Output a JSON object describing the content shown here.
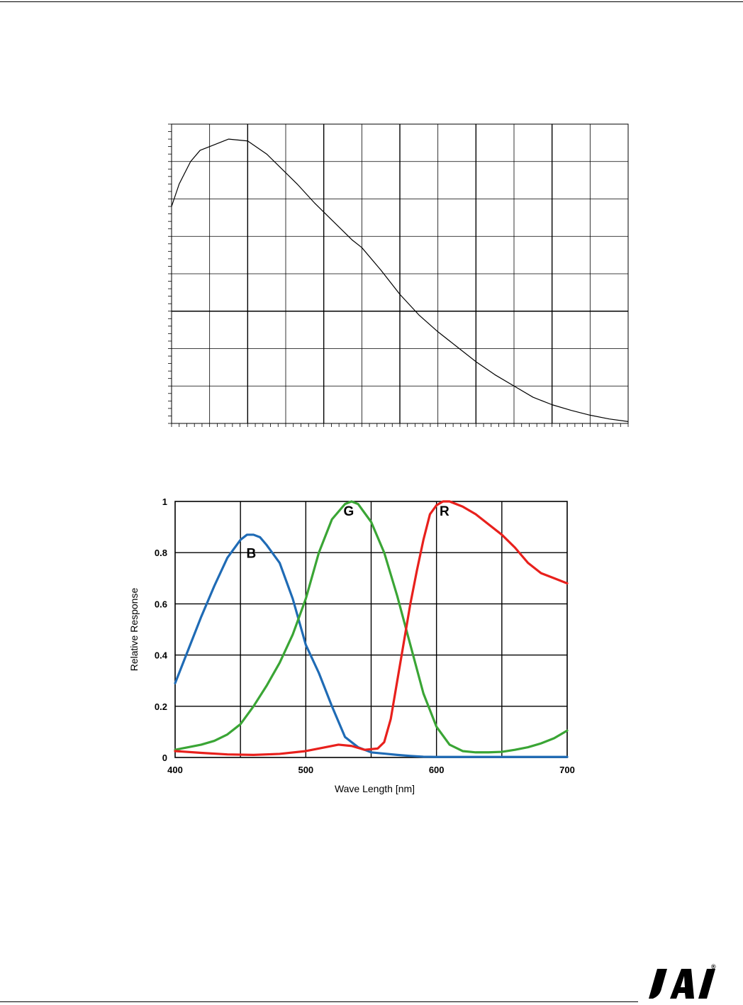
{
  "chart_data": [
    {
      "type": "line",
      "title": "",
      "xlabel": "",
      "ylabel": "",
      "grid": true,
      "x_divisions": 12,
      "y_divisions": 8,
      "series": [
        {
          "color": "#000000",
          "x": [
            0,
            0.2,
            0.5,
            0.75,
            1.0,
            1.5,
            2.0,
            2.5,
            2.9,
            3.3,
            3.75,
            4.25,
            4.75,
            5.0,
            5.5,
            6.0,
            6.5,
            7.0,
            7.5,
            8.0,
            8.5,
            9.0,
            9.5,
            10.0,
            10.5,
            11.0,
            11.5,
            12.0
          ],
          "y": [
            5.8,
            6.4,
            7.0,
            7.3,
            7.4,
            7.6,
            7.55,
            7.2,
            6.8,
            6.4,
            5.9,
            5.4,
            4.9,
            4.7,
            4.1,
            3.45,
            2.9,
            2.45,
            2.05,
            1.65,
            1.3,
            1.0,
            0.7,
            0.5,
            0.35,
            0.22,
            0.12,
            0.05
          ]
        }
      ]
    },
    {
      "type": "line",
      "title": "",
      "xlabel": "Wave Length [nm]",
      "ylabel": "Relative Response",
      "xlim": [
        400,
        700
      ],
      "ylim": [
        0,
        1
      ],
      "x_ticks": [
        "400",
        "500",
        "600",
        "700"
      ],
      "y_ticks": [
        "0",
        "0.2",
        "0.4",
        "0.6",
        "0.8",
        "1"
      ],
      "grid": true,
      "series": [
        {
          "name": "B",
          "color": "#1f6bb5",
          "x": [
            400,
            410,
            420,
            430,
            440,
            450,
            455,
            460,
            465,
            470,
            480,
            490,
            500,
            510,
            520,
            530,
            540,
            550,
            560,
            570,
            580,
            590,
            600,
            620,
            640,
            660,
            680,
            700
          ],
          "y": [
            0.29,
            0.42,
            0.55,
            0.67,
            0.78,
            0.85,
            0.87,
            0.87,
            0.86,
            0.83,
            0.76,
            0.62,
            0.44,
            0.33,
            0.2,
            0.08,
            0.04,
            0.02,
            0.015,
            0.01,
            0.006,
            0.003,
            0.002,
            0.002,
            0.002,
            0.002,
            0.002,
            0.002
          ]
        },
        {
          "name": "G",
          "color": "#3aa535",
          "x": [
            400,
            410,
            420,
            430,
            440,
            450,
            460,
            470,
            480,
            490,
            500,
            510,
            520,
            530,
            535,
            540,
            550,
            560,
            570,
            580,
            590,
            600,
            610,
            620,
            630,
            640,
            650,
            660,
            670,
            680,
            690,
            700
          ],
          "y": [
            0.03,
            0.04,
            0.05,
            0.065,
            0.09,
            0.13,
            0.2,
            0.28,
            0.37,
            0.48,
            0.62,
            0.8,
            0.93,
            0.99,
            1.0,
            0.99,
            0.92,
            0.8,
            0.63,
            0.44,
            0.25,
            0.12,
            0.05,
            0.025,
            0.02,
            0.02,
            0.022,
            0.03,
            0.04,
            0.055,
            0.075,
            0.105
          ]
        },
        {
          "name": "R",
          "color": "#e8201c",
          "x": [
            400,
            420,
            440,
            460,
            480,
            500,
            515,
            525,
            535,
            545,
            555,
            560,
            565,
            570,
            575,
            580,
            585,
            590,
            595,
            600,
            605,
            610,
            620,
            630,
            640,
            650,
            660,
            670,
            680,
            690,
            700
          ],
          "y": [
            0.025,
            0.018,
            0.012,
            0.01,
            0.014,
            0.025,
            0.04,
            0.05,
            0.045,
            0.03,
            0.035,
            0.06,
            0.15,
            0.3,
            0.45,
            0.6,
            0.73,
            0.85,
            0.95,
            0.985,
            1.0,
            1.0,
            0.98,
            0.95,
            0.91,
            0.87,
            0.82,
            0.76,
            0.72,
            0.7,
            0.68
          ]
        }
      ]
    }
  ],
  "logo": {
    "text": "JAi",
    "mark": "®",
    "color": "#000000"
  }
}
